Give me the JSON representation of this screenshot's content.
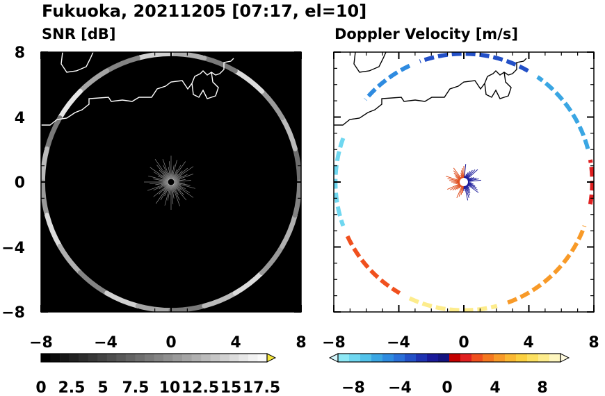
{
  "figure": {
    "title": "Fukuoka, 20211205 [07:17, el=10]"
  },
  "chart_data": [
    {
      "type": "heatmap",
      "title": "SNR [dB]",
      "xlim": [
        -8,
        8
      ],
      "ylim": [
        -8,
        8
      ],
      "xticks": [
        "−8",
        "−4",
        "0",
        "4",
        "8"
      ],
      "yticks": [
        "8",
        "4",
        "0",
        "−4",
        "−8"
      ],
      "grid": false,
      "background": "#000000",
      "echo_ring": {
        "center": [
          0,
          0
        ],
        "radius": 7.9,
        "values_db": [
          8,
          14,
          11,
          16,
          9,
          13,
          15,
          10,
          12,
          17,
          9,
          14,
          11,
          16,
          13,
          10,
          15,
          12,
          9,
          14,
          16,
          11,
          13,
          10
        ]
      },
      "colorbar": {
        "ticks": [
          "0",
          "2.5",
          "5",
          "7.5",
          "10",
          "12.5",
          "15",
          "17.5"
        ],
        "min": 0,
        "max": 18.75,
        "extend": "max",
        "colors": [
          "#000000",
          "#0b0b0b",
          "#161616",
          "#212121",
          "#2c2c2c",
          "#373737",
          "#424242",
          "#4d4d4d",
          "#585858",
          "#636363",
          "#6e6e6e",
          "#797979",
          "#848484",
          "#8f8f8f",
          "#9a9a9a",
          "#a5a5a5",
          "#b0b0b0",
          "#bbbbbb",
          "#c6c6c6",
          "#d1d1d1",
          "#dcdcdc",
          "#e7e7e7",
          "#f2f2f2",
          "#fafafa"
        ],
        "extend_color": "#f5e63c"
      }
    },
    {
      "type": "heatmap",
      "title": "Doppler Velocity [m/s]",
      "xlim": [
        -8,
        8
      ],
      "ylim": [
        -8,
        8
      ],
      "xticks": [
        "−8",
        "−4",
        "0",
        "4",
        "8"
      ],
      "yticks": [
        "8",
        "4",
        "0",
        "−4",
        "−8"
      ],
      "grid": false,
      "background": "#ffffff",
      "echo_segments": [
        {
          "theta_deg": [
            60,
            110
          ],
          "velocity": -4
        },
        {
          "theta_deg": [
            115,
            140
          ],
          "velocity": -6
        },
        {
          "theta_deg": [
            160,
            200
          ],
          "velocity": -9
        },
        {
          "theta_deg": [
            205,
            240
          ],
          "velocity": 2
        },
        {
          "theta_deg": [
            245,
            285
          ],
          "velocity": 8
        },
        {
          "theta_deg": [
            290,
            340
          ],
          "velocity": 4
        },
        {
          "theta_deg": [
            350,
            10
          ],
          "velocity": 1
        },
        {
          "theta_deg": [
            15,
            55
          ],
          "velocity": -7
        }
      ],
      "colorbar": {
        "ticks": [
          "−8",
          "−4",
          "0",
          "4",
          "8"
        ],
        "min": -10,
        "max": 10,
        "extend": "both",
        "colors": [
          "#8ee8f5",
          "#6fd7f0",
          "#52c2ea",
          "#3aa6e3",
          "#2e8be0",
          "#2a6fd8",
          "#2350c7",
          "#1e32b2",
          "#1a1a9a",
          "#141480",
          "#c40000",
          "#e02020",
          "#f0501e",
          "#f57820",
          "#f89a28",
          "#fab832",
          "#fbd040",
          "#fce060",
          "#fdec8c",
          "#fef6bf"
        ],
        "extend_low": "#d5f6fb",
        "extend_high": "#fffbe0"
      }
    }
  ]
}
